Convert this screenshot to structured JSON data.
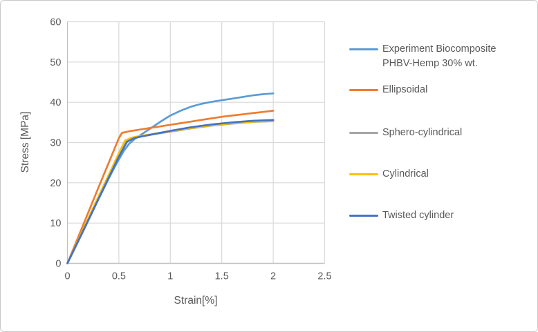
{
  "window": {
    "background": "#ffffff",
    "border_color": "#c9c9c9"
  },
  "chart_data": {
    "type": "line",
    "title": "",
    "xlabel": "Strain[%]",
    "ylabel": "Stress [MPa]",
    "xlim": [
      0,
      2.5
    ],
    "ylim": [
      0,
      60
    ],
    "x_tick_labels": [
      "0",
      "0.5",
      "1",
      "1.5",
      "2",
      "2.5"
    ],
    "x_tick_values": [
      0,
      0.5,
      1,
      1.5,
      2,
      2.5
    ],
    "y_tick_labels": [
      "0",
      "10",
      "20",
      "30",
      "40",
      "50",
      "60"
    ],
    "y_tick_values": [
      0,
      10,
      20,
      30,
      40,
      50,
      60
    ],
    "grid": true,
    "legend_position": "right",
    "colors": {
      "gridline": "#d9d9d9",
      "axis_line": "#bfbfbf",
      "text": "#595959"
    },
    "series": [
      {
        "name": "Experiment Biocomposite PHBV-Hemp 30% wt.",
        "slug": "experiment-biocomposite",
        "color": "#5B9BD5",
        "points": [
          [
            0,
            0
          ],
          [
            0.1,
            5.2
          ],
          [
            0.2,
            10.5
          ],
          [
            0.3,
            15.8
          ],
          [
            0.4,
            21.0
          ],
          [
            0.48,
            24.9
          ],
          [
            0.55,
            28.0
          ],
          [
            0.6,
            29.7
          ],
          [
            0.65,
            30.8
          ],
          [
            0.7,
            31.7
          ],
          [
            0.8,
            33.4
          ],
          [
            0.9,
            35.1
          ],
          [
            1.0,
            36.7
          ],
          [
            1.1,
            37.9
          ],
          [
            1.2,
            38.9
          ],
          [
            1.3,
            39.6
          ],
          [
            1.4,
            40.1
          ],
          [
            1.5,
            40.5
          ],
          [
            1.6,
            40.9
          ],
          [
            1.7,
            41.3
          ],
          [
            1.8,
            41.7
          ],
          [
            1.9,
            42.0
          ],
          [
            2.0,
            42.2
          ]
        ]
      },
      {
        "name": "Ellipsoidal",
        "slug": "ellipsoidal",
        "color": "#ED7D31",
        "points": [
          [
            0,
            0
          ],
          [
            0.1,
            6.2
          ],
          [
            0.2,
            12.5
          ],
          [
            0.3,
            18.7
          ],
          [
            0.4,
            24.9
          ],
          [
            0.5,
            31.1
          ],
          [
            0.53,
            32.4
          ],
          [
            0.6,
            32.8
          ],
          [
            0.7,
            33.2
          ],
          [
            0.8,
            33.6
          ],
          [
            0.9,
            34.0
          ],
          [
            1.0,
            34.4
          ],
          [
            1.1,
            34.8
          ],
          [
            1.2,
            35.2
          ],
          [
            1.3,
            35.6
          ],
          [
            1.4,
            36.0
          ],
          [
            1.5,
            36.4
          ],
          [
            1.6,
            36.7
          ],
          [
            1.7,
            37.0
          ],
          [
            1.8,
            37.3
          ],
          [
            1.9,
            37.6
          ],
          [
            2.0,
            37.9
          ]
        ]
      },
      {
        "name": "Sphero-cylindrical",
        "slug": "sphero-cylindrical",
        "color": "#A5A5A5",
        "points": [
          [
            0,
            0
          ],
          [
            0.1,
            5.4
          ],
          [
            0.2,
            10.8
          ],
          [
            0.3,
            16.2
          ],
          [
            0.4,
            21.5
          ],
          [
            0.5,
            26.8
          ],
          [
            0.57,
            30.1
          ],
          [
            0.63,
            31.0
          ],
          [
            0.7,
            31.4
          ],
          [
            0.8,
            31.9
          ],
          [
            0.9,
            32.3
          ],
          [
            1.0,
            32.7
          ],
          [
            1.2,
            33.5
          ],
          [
            1.4,
            34.2
          ],
          [
            1.6,
            34.7
          ],
          [
            1.8,
            35.1
          ],
          [
            2.0,
            35.3
          ]
        ]
      },
      {
        "name": "Cylindrical",
        "slug": "cylindrical",
        "color": "#FFC000",
        "points": [
          [
            0,
            0
          ],
          [
            0.1,
            5.5
          ],
          [
            0.2,
            11.0
          ],
          [
            0.3,
            16.5
          ],
          [
            0.4,
            21.9
          ],
          [
            0.5,
            27.4
          ],
          [
            0.56,
            30.5
          ],
          [
            0.62,
            31.2
          ],
          [
            0.7,
            31.6
          ],
          [
            0.8,
            32.0
          ],
          [
            0.9,
            32.4
          ],
          [
            1.0,
            32.8
          ],
          [
            1.2,
            33.6
          ],
          [
            1.4,
            34.3
          ],
          [
            1.6,
            34.8
          ],
          [
            1.8,
            35.2
          ],
          [
            2.0,
            35.4
          ]
        ]
      },
      {
        "name": "Twisted cylinder",
        "slug": "twisted-cylinder",
        "color": "#4472C4",
        "points": [
          [
            0,
            0
          ],
          [
            0.1,
            5.3
          ],
          [
            0.2,
            10.6
          ],
          [
            0.3,
            15.9
          ],
          [
            0.4,
            21.2
          ],
          [
            0.5,
            26.5
          ],
          [
            0.58,
            30.2
          ],
          [
            0.65,
            31.1
          ],
          [
            0.7,
            31.4
          ],
          [
            0.8,
            31.9
          ],
          [
            0.9,
            32.4
          ],
          [
            1.0,
            32.9
          ],
          [
            1.2,
            33.8
          ],
          [
            1.4,
            34.5
          ],
          [
            1.6,
            35.0
          ],
          [
            1.8,
            35.4
          ],
          [
            2.0,
            35.6
          ]
        ]
      }
    ]
  }
}
